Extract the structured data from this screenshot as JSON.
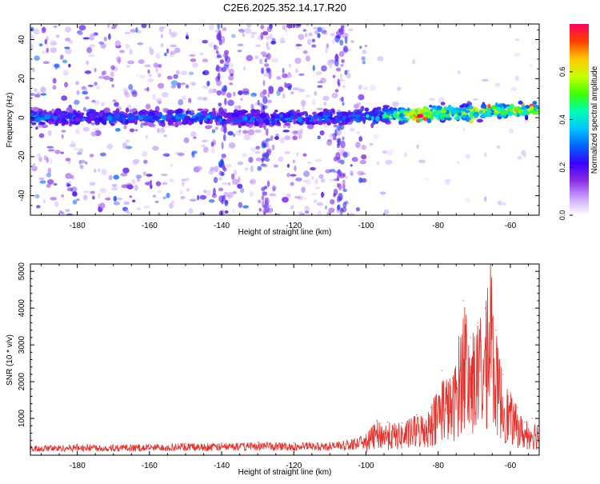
{
  "figure_title": "C2E6.2025.352.14.17.R20",
  "colors": {
    "series_line": "#e8302b",
    "axis": "#000000",
    "colorbar_stops": [
      "#ffffff",
      "#c9a2ff",
      "#8a2be2",
      "#3a00ff",
      "#0066ff",
      "#00c8ff",
      "#00ffb0",
      "#40ff00",
      "#c8ff00",
      "#ffc800",
      "#ff4000",
      "#ff0060"
    ]
  },
  "chart_data": [
    {
      "type": "heatmap",
      "title": "C2E6.2025.352.14.17.R20",
      "xlabel": "Height of straight line (km)",
      "ylabel": "Frequency (Hz)",
      "xlim": [
        -193,
        -52
      ],
      "ylim": [
        -50,
        48
      ],
      "x_ticks": [
        -180,
        -160,
        -140,
        -120,
        -100,
        -80,
        -60
      ],
      "y_ticks": [
        -40,
        -20,
        0,
        20,
        40
      ],
      "colorbar": {
        "label": "Normalized spectral amplitude",
        "range": [
          0,
          0.8
        ],
        "ticks": [
          0.0,
          0.2,
          0.4,
          0.6
        ]
      },
      "signal_band": {
        "description": "main frequency band",
        "center_freq_start": 0,
        "center_freq_end": 4,
        "peak_at_height": -85,
        "peak_amplitude": 0.8
      },
      "noise_columns_heights": [
        -140,
        -128,
        -107
      ]
    },
    {
      "type": "line",
      "title": "",
      "xlabel": "Height of straight line (km)",
      "ylabel": "SNR (10 * v/v)",
      "xlim": [
        -193,
        -52
      ],
      "ylim": [
        0,
        5200
      ],
      "x_ticks": [
        -180,
        -160,
        -140,
        -120,
        -100,
        -80,
        -60
      ],
      "y_ticks": [
        1000,
        2000,
        3000,
        4000,
        5000
      ],
      "series": [
        {
          "name": "SNR",
          "x": [
            -193,
            -180,
            -170,
            -160,
            -150,
            -140,
            -130,
            -120,
            -110,
            -104,
            -100,
            -97,
            -94,
            -90,
            -86,
            -82,
            -79,
            -76,
            -73,
            -71,
            -69,
            -67,
            -65.5,
            -64,
            -62,
            -60,
            -58,
            -56,
            -54,
            -52
          ],
          "values": [
            250,
            300,
            280,
            300,
            320,
            330,
            360,
            340,
            350,
            420,
            560,
            950,
            900,
            880,
            1100,
            1300,
            2300,
            2100,
            4200,
            3200,
            3600,
            4000,
            5200,
            3400,
            2200,
            1700,
            1300,
            900,
            1000,
            900
          ]
        }
      ]
    }
  ]
}
